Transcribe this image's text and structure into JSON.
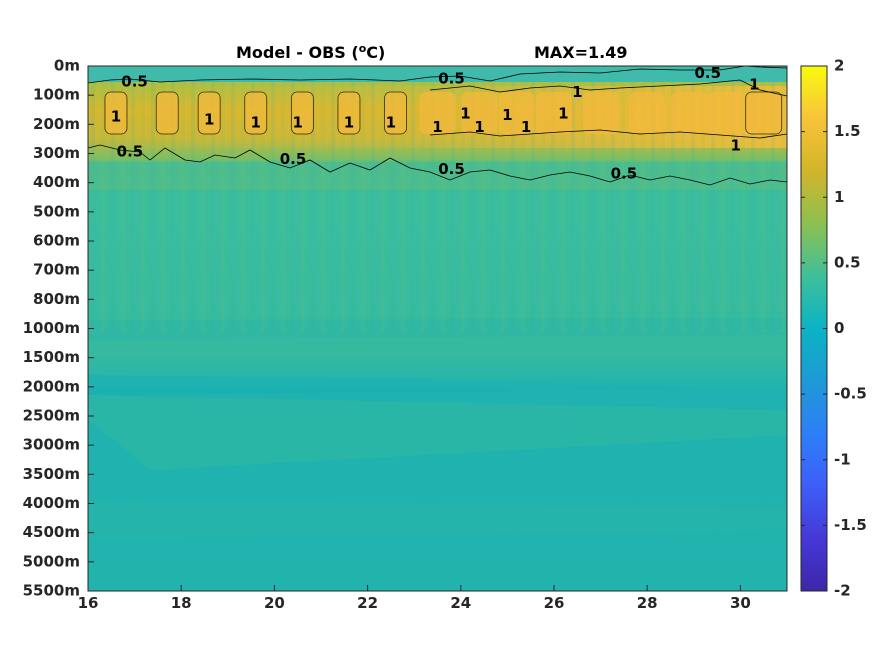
{
  "chart_data": {
    "type": "heatmap",
    "title": "Model - OBS (",
    "title_unit_sup": "o",
    "title_unit_end": "C)",
    "max_label": "MAX=1.49",
    "x_ticks": [
      "16",
      "18",
      "20",
      "22",
      "24",
      "26",
      "28",
      "30"
    ],
    "x_values": [
      16,
      18,
      20,
      22,
      24,
      26,
      28,
      30
    ],
    "xlim": [
      16,
      31
    ],
    "y_ticks": [
      "0m",
      "100m",
      "200m",
      "300m",
      "400m",
      "500m",
      "600m",
      "700m",
      "800m",
      "1000m",
      "1500m",
      "2000m",
      "2500m",
      "3000m",
      "3500m",
      "4000m",
      "4500m",
      "5000m",
      "5500m"
    ],
    "colorbar": {
      "ticks": [
        "2",
        "1.5",
        "1",
        "0.5",
        "0",
        "-0.5",
        "-1",
        "-1.5",
        "-2"
      ],
      "range": [
        -2,
        2
      ],
      "colormap": "parula"
    },
    "contour_labels": [
      {
        "text": "0.5",
        "x": 17.0,
        "depth_index": 0.55
      },
      {
        "text": "0.5",
        "x": 23.8,
        "depth_index": 0.45
      },
      {
        "text": "0.5",
        "x": 29.3,
        "depth_index": 0.25
      },
      {
        "text": "1",
        "x": 30.3,
        "depth_index": 0.65
      },
      {
        "text": "1",
        "x": 16.6,
        "depth_index": 1.75
      },
      {
        "text": "1",
        "x": 18.6,
        "depth_index": 1.85
      },
      {
        "text": "1",
        "x": 19.6,
        "depth_index": 1.95
      },
      {
        "text": "1",
        "x": 20.5,
        "depth_index": 1.95
      },
      {
        "text": "1",
        "x": 21.6,
        "depth_index": 1.95
      },
      {
        "text": "1",
        "x": 22.5,
        "depth_index": 1.95
      },
      {
        "text": "1",
        "x": 23.5,
        "depth_index": 2.1
      },
      {
        "text": "1",
        "x": 24.1,
        "depth_index": 1.65
      },
      {
        "text": "1",
        "x": 24.4,
        "depth_index": 2.1
      },
      {
        "text": "1",
        "x": 25.0,
        "depth_index": 1.7
      },
      {
        "text": "1",
        "x": 25.4,
        "depth_index": 2.1
      },
      {
        "text": "1",
        "x": 26.2,
        "depth_index": 1.65
      },
      {
        "text": "1",
        "x": 26.5,
        "depth_index": 0.9
      },
      {
        "text": "1",
        "x": 29.9,
        "depth_index": 2.75
      },
      {
        "text": "0.5",
        "x": 16.9,
        "depth_index": 2.95
      },
      {
        "text": "0.5",
        "x": 20.4,
        "depth_index": 3.2
      },
      {
        "text": "0.5",
        "x": 23.8,
        "depth_index": 3.55
      },
      {
        "text": "0.5",
        "x": 27.5,
        "depth_index": 3.7
      }
    ]
  }
}
